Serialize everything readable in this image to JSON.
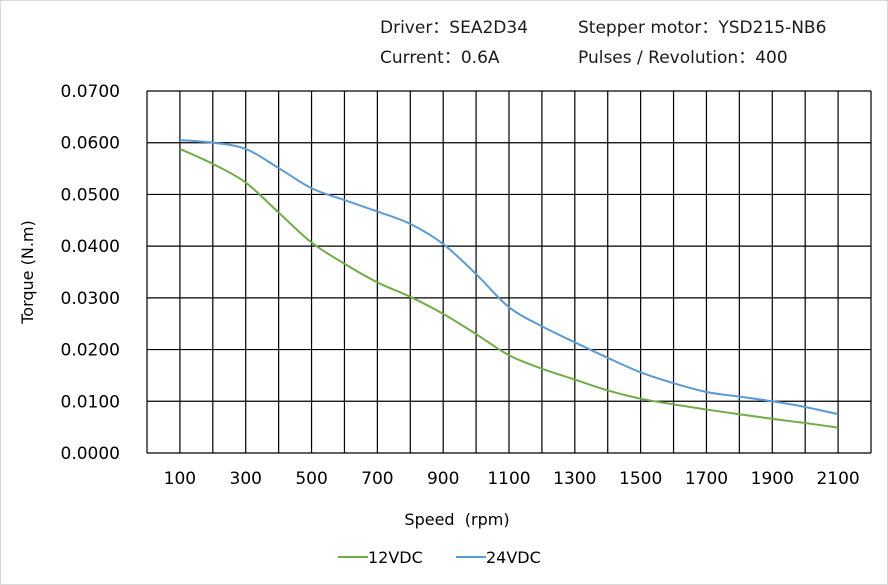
{
  "header": {
    "driver": "Driver：SEA2D34",
    "motor": "Stepper motor：YSD215-NB6",
    "current": "Current：0.6A",
    "pulses": "Pulses / Revolution：400"
  },
  "chart_data": {
    "type": "line",
    "title": "",
    "xlabel": "Speed  (rpm)",
    "ylabel": "Torque (N.m)",
    "xlim": [
      0,
      2200
    ],
    "ylim": [
      0,
      0.07
    ],
    "x_ticks": [
      "100",
      "300",
      "500",
      "700",
      "900",
      "1100",
      "1300",
      "1500",
      "1700",
      "1900",
      "2100"
    ],
    "y_ticks": [
      "0.0000",
      "0.0100",
      "0.0200",
      "0.0300",
      "0.0400",
      "0.0500",
      "0.0600",
      "0.0700"
    ],
    "grid": true,
    "legend": "bottom",
    "x": [
      100,
      200,
      300,
      400,
      500,
      600,
      700,
      800,
      900,
      1000,
      1100,
      1200,
      1300,
      1400,
      1500,
      1600,
      1700,
      1800,
      1900,
      2000,
      2100
    ],
    "series": [
      {
        "name": "12VDC",
        "color": "#70AD47",
        "values": [
          0.0588,
          0.0559,
          0.0523,
          0.0465,
          0.0407,
          0.0366,
          0.033,
          0.0302,
          0.0269,
          0.023,
          0.0189,
          0.0163,
          0.0142,
          0.0121,
          0.0105,
          0.0094,
          0.0084,
          0.0075,
          0.0066,
          0.0058,
          0.0049
        ]
      },
      {
        "name": "24VDC",
        "color": "#5B9BD5",
        "values": [
          0.0605,
          0.06,
          0.0588,
          0.0551,
          0.0512,
          0.0489,
          0.0467,
          0.0443,
          0.0404,
          0.0346,
          0.0282,
          0.0245,
          0.0214,
          0.0184,
          0.0156,
          0.0135,
          0.0118,
          0.0109,
          0.01,
          0.0089,
          0.0075
        ]
      }
    ]
  }
}
